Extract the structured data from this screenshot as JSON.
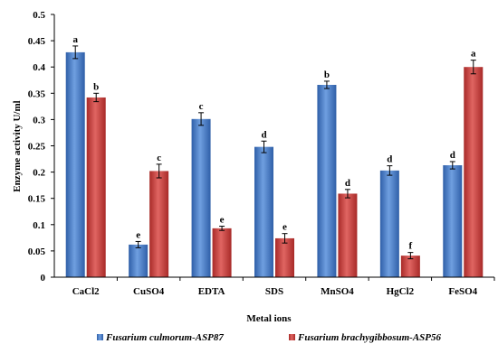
{
  "chart_data": {
    "type": "bar",
    "xlabel": "Metal ions",
    "ylabel": "Enzyme activity U/ml",
    "ylim": [
      0,
      0.5
    ],
    "yticks": [
      "0",
      "0.05",
      "0.1",
      "0.15",
      "0.2",
      "0.25",
      "0.3",
      "0.35",
      "0.4",
      "0.45",
      "0.5"
    ],
    "categories": [
      "CaCl2",
      "CuSO4",
      "EDTA",
      "SDS",
      "MnSO4",
      "HgCl2",
      "FeSO4"
    ],
    "grid": false,
    "legend_position": "bottom",
    "series": [
      {
        "name": "Fusarium culmorum-ASP87",
        "color": "#4a7fc8",
        "values": [
          0.428,
          0.062,
          0.301,
          0.248,
          0.366,
          0.203,
          0.213
        ],
        "errors": [
          0.012,
          0.006,
          0.012,
          0.011,
          0.007,
          0.009,
          0.007
        ],
        "labels": [
          "a",
          "e",
          "c",
          "d",
          "b",
          "d",
          "d"
        ]
      },
      {
        "name": "Fusarium brachygibbosum-ASP56",
        "color": "#c8403d",
        "values": [
          0.342,
          0.202,
          0.093,
          0.074,
          0.159,
          0.041,
          0.4
        ],
        "errors": [
          0.008,
          0.013,
          0.004,
          0.009,
          0.008,
          0.006,
          0.013
        ],
        "labels": [
          "b",
          "c",
          "e",
          "e",
          "d",
          "f",
          "a"
        ]
      }
    ]
  }
}
